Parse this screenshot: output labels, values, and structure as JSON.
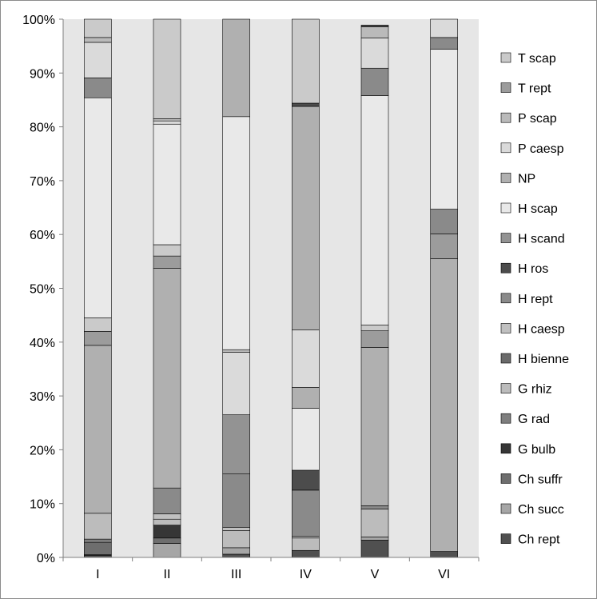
{
  "chart_data": {
    "type": "bar",
    "stacked": "percent",
    "categories": [
      "I",
      "II",
      "III",
      "IV",
      "V",
      "VI"
    ],
    "y_ticks": [
      "0%",
      "10%",
      "20%",
      "30%",
      "40%",
      "50%",
      "60%",
      "70%",
      "80%",
      "90%",
      "100%"
    ],
    "ylim": [
      0,
      100
    ],
    "grid": "none",
    "plot_background": "#e6e6e6",
    "legend_position": "right",
    "series": [
      {
        "name": "Ch rept",
        "color": "#505050",
        "values": [
          0.4,
          0.0,
          0.6,
          1.3,
          3.2,
          1.1
        ]
      },
      {
        "name": "Ch succ",
        "color": "#a6a6a6",
        "values": [
          0.1,
          2.6,
          1.2,
          0.0,
          0.6,
          0.0
        ]
      },
      {
        "name": "Ch suffr",
        "color": "#6e6e6e",
        "values": [
          2.3,
          1.0,
          0.0,
          0.0,
          0.0,
          0.0
        ]
      },
      {
        "name": "G bulb",
        "color": "#363636",
        "values": [
          0.0,
          2.4,
          0.0,
          0.0,
          0.0,
          0.0
        ]
      },
      {
        "name": "G rad",
        "color": "#7e7e7e",
        "values": [
          0.6,
          0.0,
          0.0,
          0.0,
          0.0,
          0.0
        ]
      },
      {
        "name": "G rhiz",
        "color": "#bcbcbc",
        "values": [
          4.8,
          1.1,
          3.2,
          2.3,
          5.2,
          0.0
        ]
      },
      {
        "name": "H bienne",
        "color": "#6a6a6a",
        "values": [
          0.0,
          0.0,
          0.0,
          0.0,
          0.0,
          0.0
        ]
      },
      {
        "name": "H caesp",
        "color": "#c0c0c0",
        "values": [
          0.0,
          1.0,
          0.6,
          0.3,
          0.0,
          0.0
        ]
      },
      {
        "name": "H rept",
        "color": "#8a8a8a",
        "values": [
          0.0,
          4.8,
          9.9,
          8.6,
          0.6,
          0.0
        ]
      },
      {
        "name": "H ros",
        "color": "#4c4c4c",
        "values": [
          0.0,
          0.0,
          0.0,
          3.7,
          0.0,
          0.0
        ]
      },
      {
        "name": "H scand",
        "color": "#939393",
        "values": [
          0.0,
          0.0,
          11.0,
          0.0,
          0.0,
          0.0
        ]
      },
      {
        "name": "H scap",
        "color": "#e9e9e9",
        "values": [
          0.0,
          0.0,
          0.0,
          11.5,
          0.0,
          0.0
        ]
      },
      {
        "name": "NP",
        "color": "#b0b0b0",
        "values": [
          31.2,
          40.8,
          0.0,
          3.9,
          29.4,
          54.4
        ]
      },
      {
        "name": "P caesp",
        "color": "#dadada",
        "values": [
          0.0,
          0.0,
          11.6,
          10.7,
          0.0,
          0.0
        ]
      },
      {
        "name": "P scap",
        "color": "#bababa",
        "values": [
          0.0,
          0.0,
          0.5,
          0.0,
          0.0,
          0.0
        ]
      },
      {
        "name": "T rept",
        "color": "#9c9c9c",
        "values": [
          2.6,
          2.3,
          0.0,
          0.0,
          3.1,
          4.6
        ]
      },
      {
        "name": "T scap",
        "color": "#cacaca",
        "values": [
          2.5,
          2.1,
          0.0,
          0.0,
          1.1,
          0.0
        ]
      },
      {
        "name": "Ch rept",
        "color": "#505050",
        "values": [
          0.0,
          0.0,
          0.0,
          0.0,
          0.0,
          0.0
        ]
      },
      {
        "name": "Ch succ",
        "color": "#a6a6a6",
        "values": [
          0.0,
          0.0,
          0.0,
          0.0,
          0.0,
          0.0
        ]
      }
    ]
  }
}
